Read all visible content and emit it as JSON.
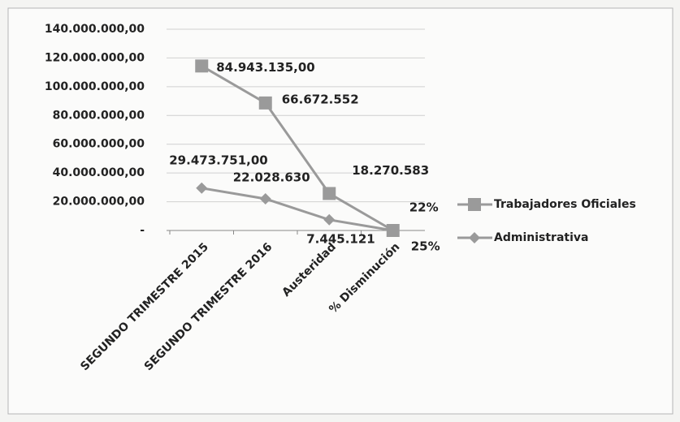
{
  "chart_data": {
    "type": "line",
    "stacked": true,
    "categories": [
      "SEGUNDO TRIMESTRE 2015",
      "SEGUNDO TRIMESTRE 2016",
      "Austeridad",
      "% Disminución"
    ],
    "series": [
      {
        "name": "Administrativa",
        "color": "#9a9a9a",
        "marker": "diamond",
        "values": [
          29473751,
          22028630,
          7445121,
          25
        ],
        "value_labels": [
          "29.473.751,00",
          "22.028.630",
          "7.445.121",
          "25%"
        ]
      },
      {
        "name": "Trabajadores Oficiales",
        "color": "#9a9a9a",
        "marker": "square",
        "values": [
          84943135,
          66672552,
          18270583,
          22
        ],
        "value_labels": [
          "84.943.135,00",
          "66.672.552",
          "18.270.583",
          "22%"
        ]
      }
    ],
    "ylim": [
      0,
      140000000
    ],
    "yticks": [
      {
        "value": 0,
        "label": "-"
      },
      {
        "value": 20000000,
        "label": "20.000.000,00"
      },
      {
        "value": 40000000,
        "label": "40.000.000,00"
      },
      {
        "value": 60000000,
        "label": "60.000.000,00"
      },
      {
        "value": 80000000,
        "label": "80.000.000,00"
      },
      {
        "value": 100000000,
        "label": "100.000.000,00"
      },
      {
        "value": 120000000,
        "label": "120.000.000,00"
      },
      {
        "value": 140000000,
        "label": "140.000.000,00"
      }
    ],
    "grid": true,
    "legend": "right"
  }
}
